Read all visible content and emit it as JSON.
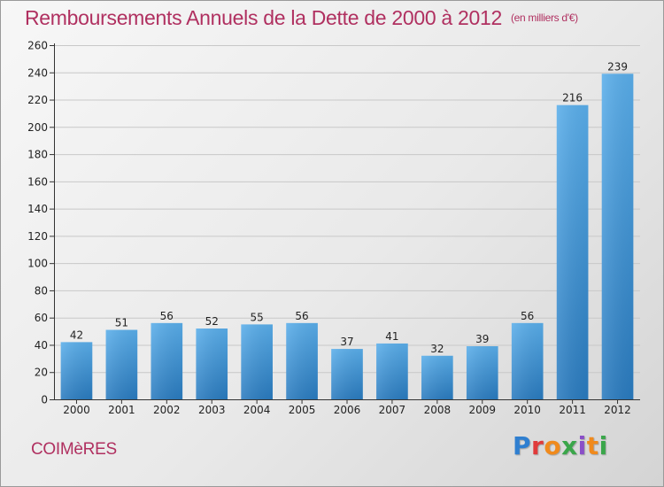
{
  "title": "Remboursements Annuels de la Dette de 2000 à 2012",
  "unit": "(en milliers d'€)",
  "commune": "COIMèRES",
  "logo": "Proxiti",
  "chart_data": {
    "type": "bar",
    "title": "Remboursements Annuels de la Dette de 2000 à 2012",
    "subtitle": "(en milliers d'€)",
    "xlabel": "",
    "ylabel": "",
    "ylim": [
      0,
      260
    ],
    "yticks": [
      0,
      20,
      40,
      60,
      80,
      100,
      120,
      140,
      160,
      180,
      200,
      220,
      240,
      260
    ],
    "grid": true,
    "categories": [
      "2000",
      "2001",
      "2002",
      "2003",
      "2004",
      "2005",
      "2006",
      "2007",
      "2008",
      "2009",
      "2010",
      "2011",
      "2012"
    ],
    "values": [
      42,
      51,
      56,
      52,
      55,
      56,
      37,
      41,
      32,
      39,
      56,
      216,
      239
    ],
    "colors": {
      "bar_top": "#5aaeea",
      "bar_bottom": "#2a7bbf",
      "grid": "#c8c8c8"
    }
  }
}
